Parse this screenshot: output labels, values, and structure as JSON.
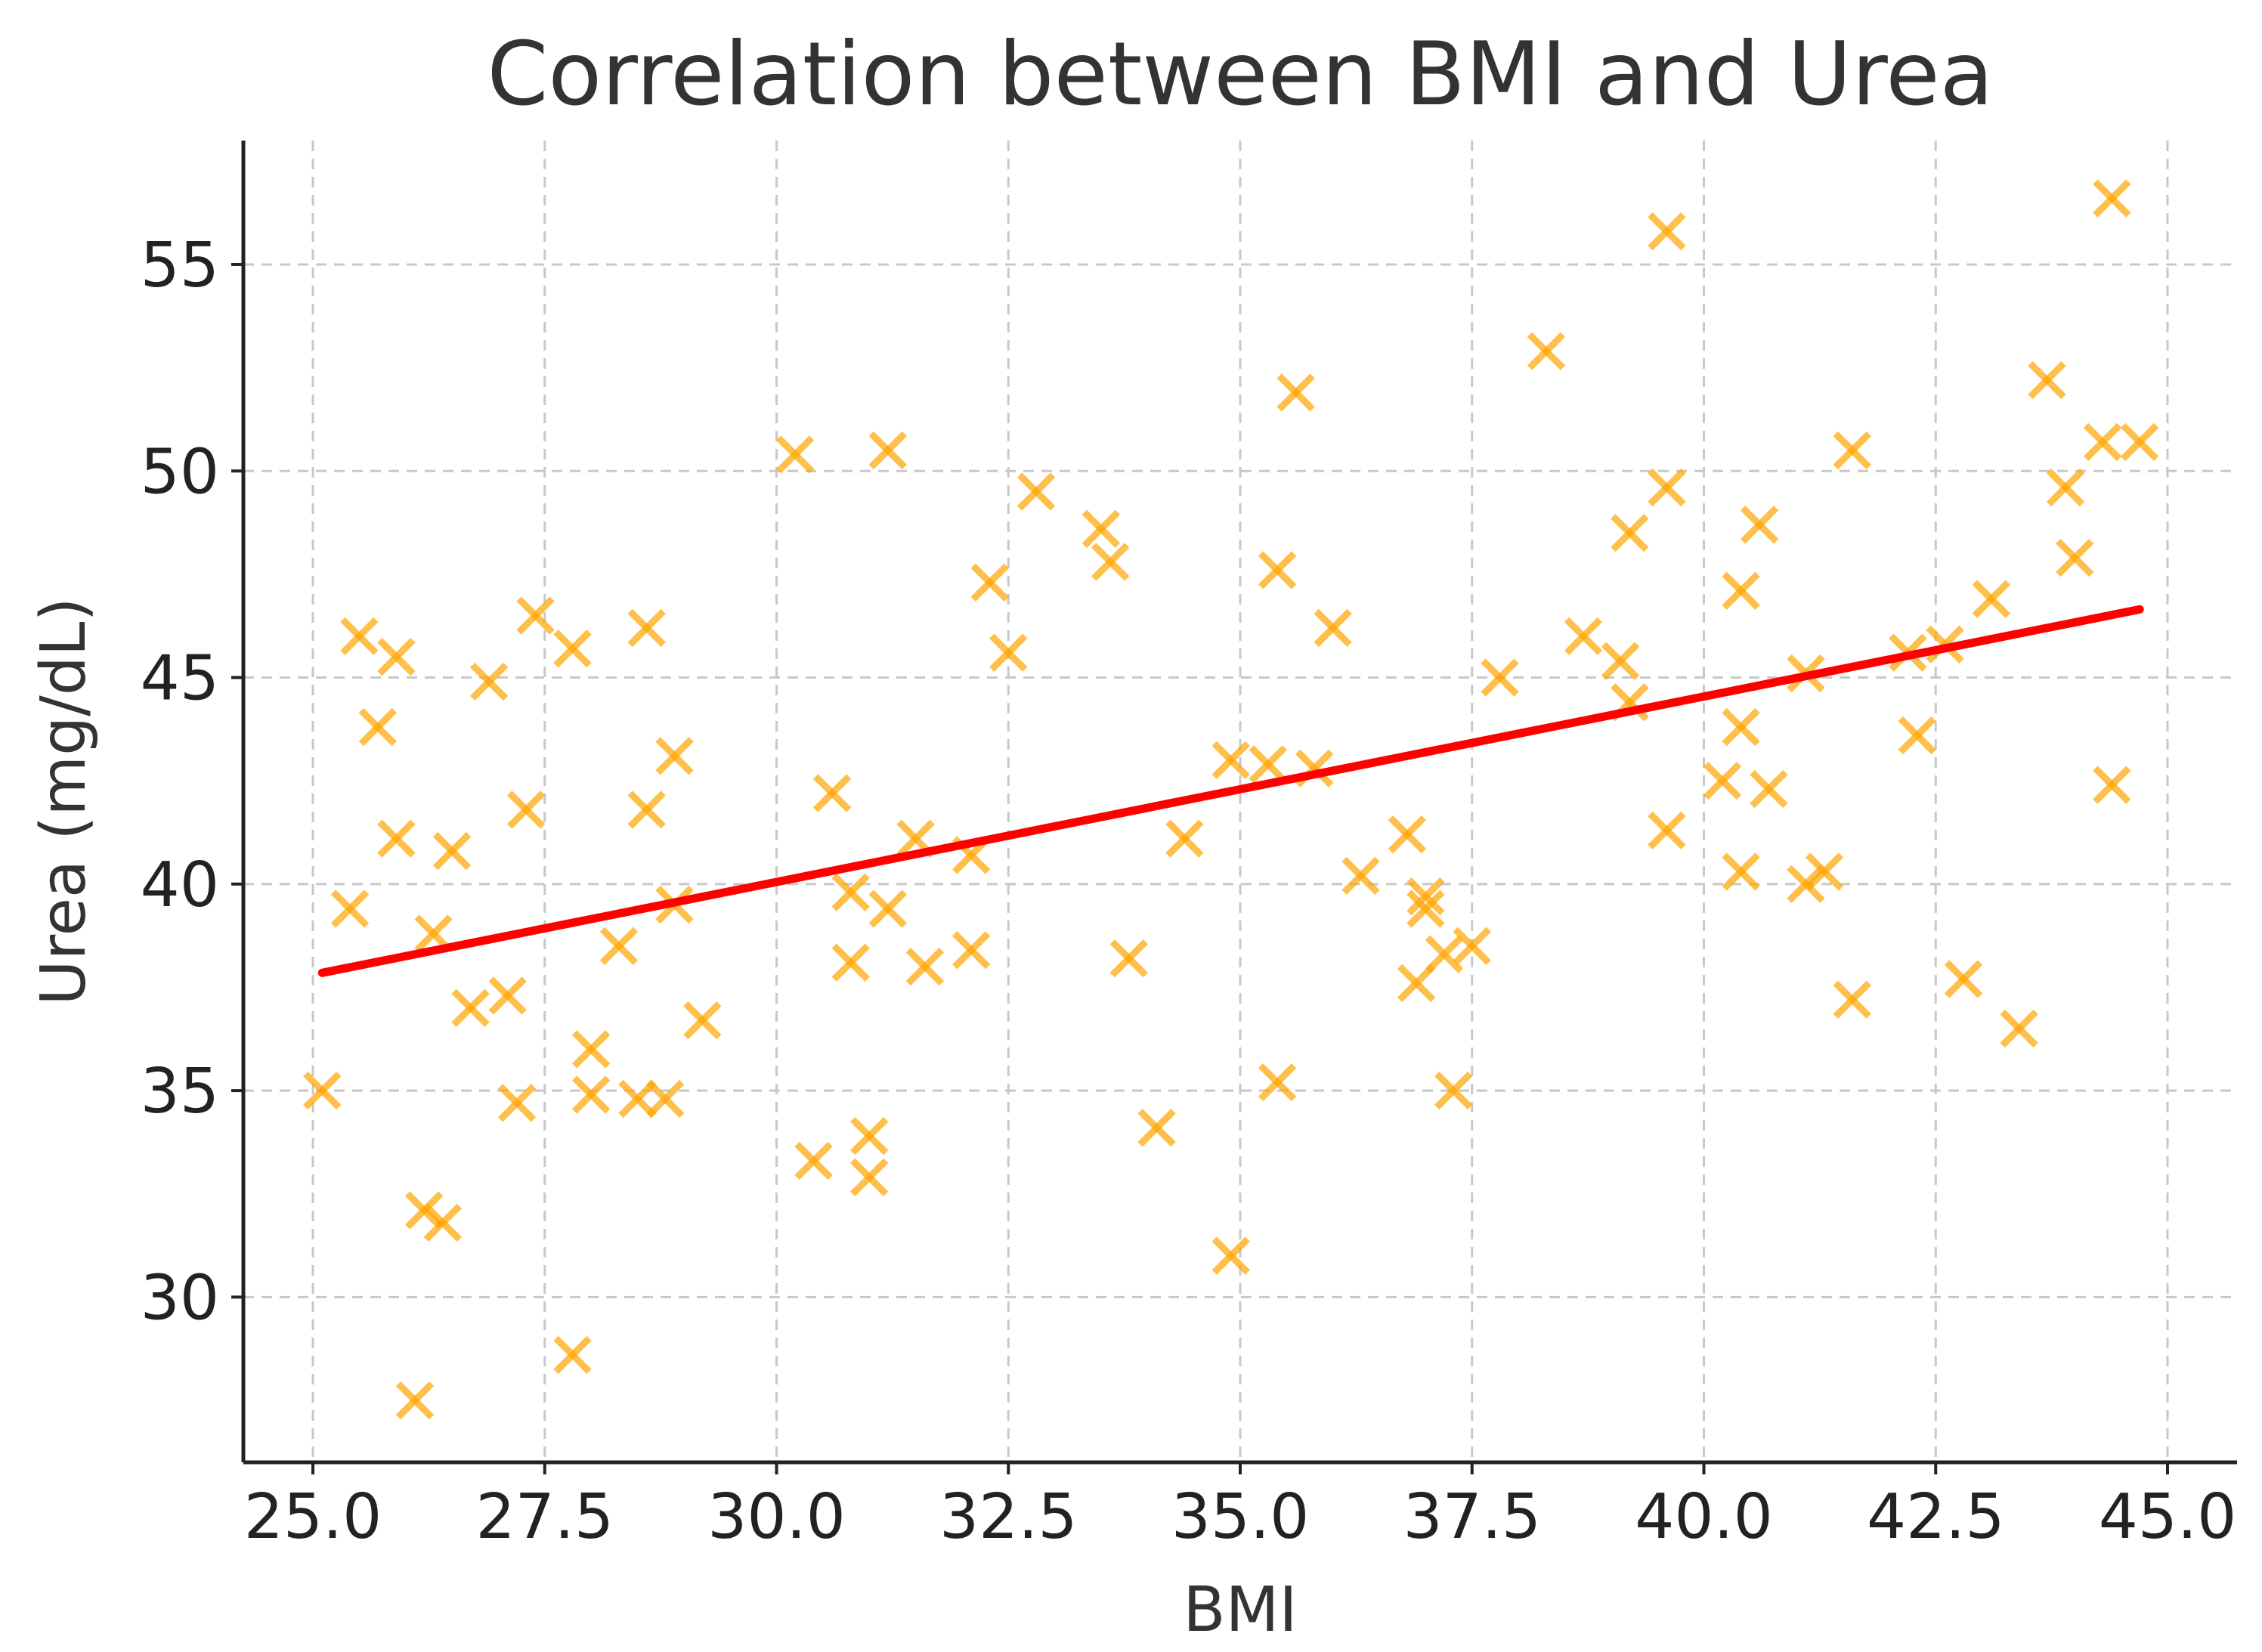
{
  "chart_data": {
    "type": "scatter",
    "title": "Correlation between BMI and Urea",
    "xlabel": "BMI",
    "ylabel": "Urea (mg/dL)",
    "xlim": [
      24.25,
      45.75
    ],
    "ylim": [
      26.0,
      58.0
    ],
    "xticks": [
      25.0,
      27.5,
      30.0,
      32.5,
      35.0,
      37.5,
      40.0,
      42.5,
      45.0
    ],
    "xtick_labels": [
      "25.0",
      "27.5",
      "30.0",
      "32.5",
      "35.0",
      "37.5",
      "40.0",
      "42.5",
      "45.0"
    ],
    "yticks": [
      30,
      35,
      40,
      45,
      50,
      55
    ],
    "ytick_labels": [
      "30",
      "35",
      "40",
      "45",
      "50",
      "55"
    ],
    "grid": true,
    "series": [
      {
        "name": "data",
        "marker": "x",
        "color": "#FFA500",
        "points": [
          [
            25.1,
            35.0
          ],
          [
            25.4,
            39.4
          ],
          [
            25.5,
            46.0
          ],
          [
            25.7,
            43.8
          ],
          [
            25.9,
            45.5
          ],
          [
            25.9,
            41.1
          ],
          [
            26.1,
            27.5
          ],
          [
            26.2,
            32.1
          ],
          [
            26.3,
            38.8
          ],
          [
            26.4,
            31.8
          ],
          [
            26.5,
            40.8
          ],
          [
            26.7,
            37.0
          ],
          [
            26.9,
            44.9
          ],
          [
            27.1,
            37.3
          ],
          [
            27.2,
            34.7
          ],
          [
            27.3,
            41.8
          ],
          [
            27.4,
            46.5
          ],
          [
            27.8,
            45.7
          ],
          [
            27.8,
            28.6
          ],
          [
            28.0,
            36.0
          ],
          [
            28.0,
            34.9
          ],
          [
            28.3,
            38.5
          ],
          [
            28.5,
            34.8
          ],
          [
            28.6,
            41.8
          ],
          [
            28.6,
            46.2
          ],
          [
            28.8,
            34.8
          ],
          [
            28.9,
            43.1
          ],
          [
            28.9,
            39.5
          ],
          [
            29.2,
            36.7
          ],
          [
            30.2,
            50.4
          ],
          [
            30.4,
            33.3
          ],
          [
            30.6,
            42.2
          ],
          [
            30.8,
            38.1
          ],
          [
            30.8,
            39.8
          ],
          [
            31.0,
            33.9
          ],
          [
            31.0,
            32.9
          ],
          [
            31.2,
            50.5
          ],
          [
            31.2,
            39.4
          ],
          [
            31.5,
            41.1
          ],
          [
            31.6,
            38.0
          ],
          [
            32.1,
            40.7
          ],
          [
            32.1,
            38.4
          ],
          [
            32.3,
            47.3
          ],
          [
            32.5,
            45.6
          ],
          [
            32.8,
            49.5
          ],
          [
            33.5,
            48.6
          ],
          [
            33.6,
            47.8
          ],
          [
            33.8,
            38.2
          ],
          [
            34.1,
            34.1
          ],
          [
            34.4,
            41.1
          ],
          [
            34.9,
            43.0
          ],
          [
            34.9,
            31.0
          ],
          [
            35.3,
            42.9
          ],
          [
            35.4,
            47.6
          ],
          [
            35.4,
            35.2
          ],
          [
            35.6,
            51.9
          ],
          [
            35.8,
            42.8
          ],
          [
            36.0,
            46.2
          ],
          [
            36.3,
            40.2
          ],
          [
            36.8,
            41.2
          ],
          [
            36.9,
            37.6
          ],
          [
            37.0,
            39.4
          ],
          [
            37.0,
            39.7
          ],
          [
            37.2,
            38.3
          ],
          [
            37.3,
            35.0
          ],
          [
            37.5,
            38.5
          ],
          [
            37.8,
            45.0
          ],
          [
            38.3,
            52.9
          ],
          [
            38.7,
            46.0
          ],
          [
            39.1,
            45.4
          ],
          [
            39.2,
            44.4
          ],
          [
            39.2,
            48.5
          ],
          [
            39.6,
            49.6
          ],
          [
            39.6,
            55.8
          ],
          [
            39.6,
            41.3
          ],
          [
            40.2,
            42.5
          ],
          [
            40.4,
            47.1
          ],
          [
            40.4,
            43.8
          ],
          [
            40.4,
            40.3
          ],
          [
            40.6,
            48.7
          ],
          [
            40.7,
            42.3
          ],
          [
            41.1,
            40.0
          ],
          [
            41.1,
            45.1
          ],
          [
            41.3,
            40.3
          ],
          [
            41.6,
            37.2
          ],
          [
            41.6,
            50.5
          ],
          [
            42.2,
            45.6
          ],
          [
            42.3,
            43.6
          ],
          [
            42.6,
            45.8
          ],
          [
            42.8,
            37.7
          ],
          [
            43.1,
            46.9
          ],
          [
            43.4,
            36.5
          ],
          [
            43.7,
            52.2
          ],
          [
            43.9,
            49.6
          ],
          [
            44.0,
            47.9
          ],
          [
            44.3,
            50.7
          ],
          [
            44.4,
            56.6
          ],
          [
            44.4,
            42.4
          ],
          [
            44.7,
            50.7
          ]
        ]
      }
    ],
    "trend_line": {
      "name": "linear fit",
      "color": "#FF0000",
      "x": [
        25.1,
        44.7
      ],
      "y": [
        37.85,
        46.65
      ]
    }
  }
}
